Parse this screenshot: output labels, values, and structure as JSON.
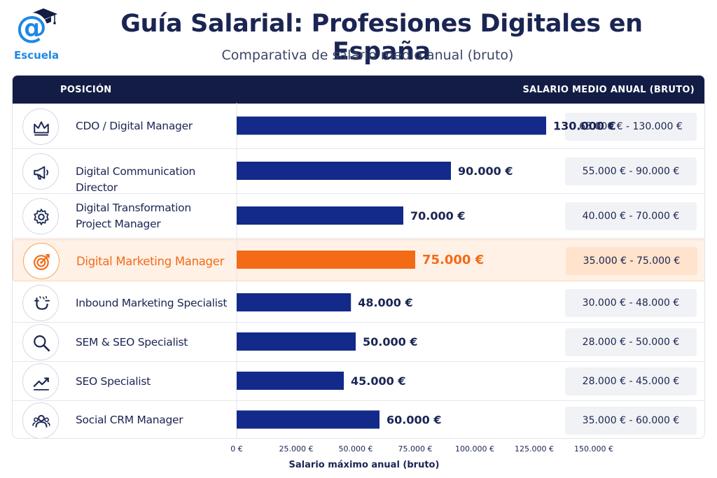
{
  "brand": {
    "name": "Escuela",
    "accent": "#1e88e5"
  },
  "title": "Guía Salarial: Profesiones Digitales en España",
  "subtitle": "Comparativa de salario medio anual (bruto)",
  "table": {
    "header_left": "POSICIÓN",
    "header_right": "SALARIO MEDIO ANUAL (BRUTO)",
    "rows": [
      {
        "position": "CDO / Digital Manager",
        "icon": "crown-icon",
        "value_label": "130.000 €",
        "range": "65.000 € - 130.000 €",
        "highlight": false
      },
      {
        "position": "Digital Communication Director",
        "icon": "megaphone-icon",
        "value_label": "90.000 €",
        "range": "55.000 € - 90.000 €",
        "highlight": false
      },
      {
        "position": "Digital Transformation\nProject Manager",
        "icon": "gear-icon",
        "value_label": "70.000 €",
        "range": "40.000 € - 70.000 €",
        "highlight": false
      },
      {
        "position": "Digital Marketing Manager",
        "icon": "target-icon",
        "value_label": "75.000 €",
        "range": "35.000 € - 75.000 €",
        "highlight": true
      },
      {
        "position": "Inbound Marketing Specialist",
        "icon": "magnet-icon",
        "value_label": "48.000 €",
        "range": "30.000 € - 48.000 €",
        "highlight": false
      },
      {
        "position": "SEM & SEO Specialist",
        "icon": "search-icon",
        "value_label": "50.000 €",
        "range": "28.000 € - 50.000 €",
        "highlight": false
      },
      {
        "position": "SEO Specialist",
        "icon": "trend-up-icon",
        "value_label": "45.000 €",
        "range": "28.000 € - 45.000 €",
        "highlight": false
      },
      {
        "position": "Social CRM Manager",
        "icon": "users-icon",
        "value_label": "60.000 €",
        "range": "35.000 € - 60.000 €",
        "highlight": false
      }
    ]
  },
  "chart_data": {
    "type": "bar",
    "orientation": "horizontal",
    "categories": [
      "CDO / Digital Manager",
      "Digital Communication Director",
      "Digital Transformation Project Manager",
      "Digital Marketing Manager",
      "Inbound Marketing Specialist",
      "SEM & SEO Specialist",
      "SEO Specialist",
      "Social CRM Manager"
    ],
    "values": [
      130000,
      90000,
      70000,
      75000,
      48000,
      50000,
      45000,
      60000
    ],
    "value_labels": [
      "130.000 €",
      "90.000 €",
      "70.000 €",
      "75.000 €",
      "48.000 €",
      "50.000 €",
      "45.000 €",
      "60.000 €"
    ],
    "highlight_index": 3,
    "xlabel": "Salario máximo anual (bruto)",
    "xlim": [
      0,
      150000
    ],
    "xticks": [
      0,
      25000,
      50000,
      75000,
      100000,
      125000,
      150000
    ],
    "xtick_labels": [
      "0 €",
      "25.000 €",
      "50.000 €",
      "75.000 €",
      "100.000 €",
      "125.000 €",
      "150.000 €"
    ],
    "grid": true,
    "colors": {
      "bar": "#132a8a",
      "highlight": "#f36b16",
      "header": "#131c45"
    }
  }
}
